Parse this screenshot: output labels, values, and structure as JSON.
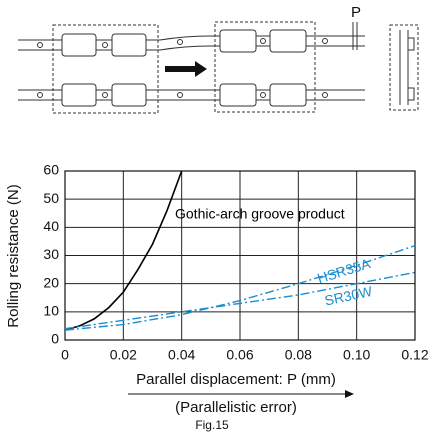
{
  "diagram": {
    "dimension_label": "P"
  },
  "chart_data": {
    "type": "line",
    "xlabel": "Parallel displacement: P (mm)",
    "ylabel": "Rolling resistance (N)",
    "x_sublabel": "(Parallelistic error)",
    "figure_label": "Fig.15",
    "xlim": [
      0,
      0.12
    ],
    "ylim": [
      0,
      60
    ],
    "xticks": [
      0,
      0.02,
      0.04,
      0.06,
      0.08,
      {
        "value": 0.1,
        "label": "0.10"
      },
      0.12
    ],
    "yticks": [
      0,
      10,
      20,
      30,
      40,
      50,
      60
    ],
    "grid": true,
    "series": [
      {
        "name": "Gothic-arch groove product",
        "color": "#000000",
        "style": "solid",
        "x": [
          0,
          0.005,
          0.01,
          0.015,
          0.02,
          0.025,
          0.03,
          0.035,
          0.04
        ],
        "values": [
          3.5,
          5,
          7.5,
          11.5,
          17,
          25,
          34,
          46,
          60
        ]
      },
      {
        "name": "HSR35A",
        "color": "#1a8fd0",
        "style": "dashdot",
        "x": [
          0,
          0.02,
          0.04,
          0.06,
          0.08,
          0.1,
          0.12
        ],
        "values": [
          3.5,
          5.5,
          9,
          14,
          20,
          26.5,
          33.5
        ]
      },
      {
        "name": "SR30W",
        "color": "#1a8fd0",
        "style": "dashdot",
        "x": [
          0,
          0.02,
          0.04,
          0.06,
          0.08,
          0.1,
          0.12
        ],
        "values": [
          4,
          7,
          10,
          13,
          16,
          20,
          24
        ]
      }
    ]
  }
}
